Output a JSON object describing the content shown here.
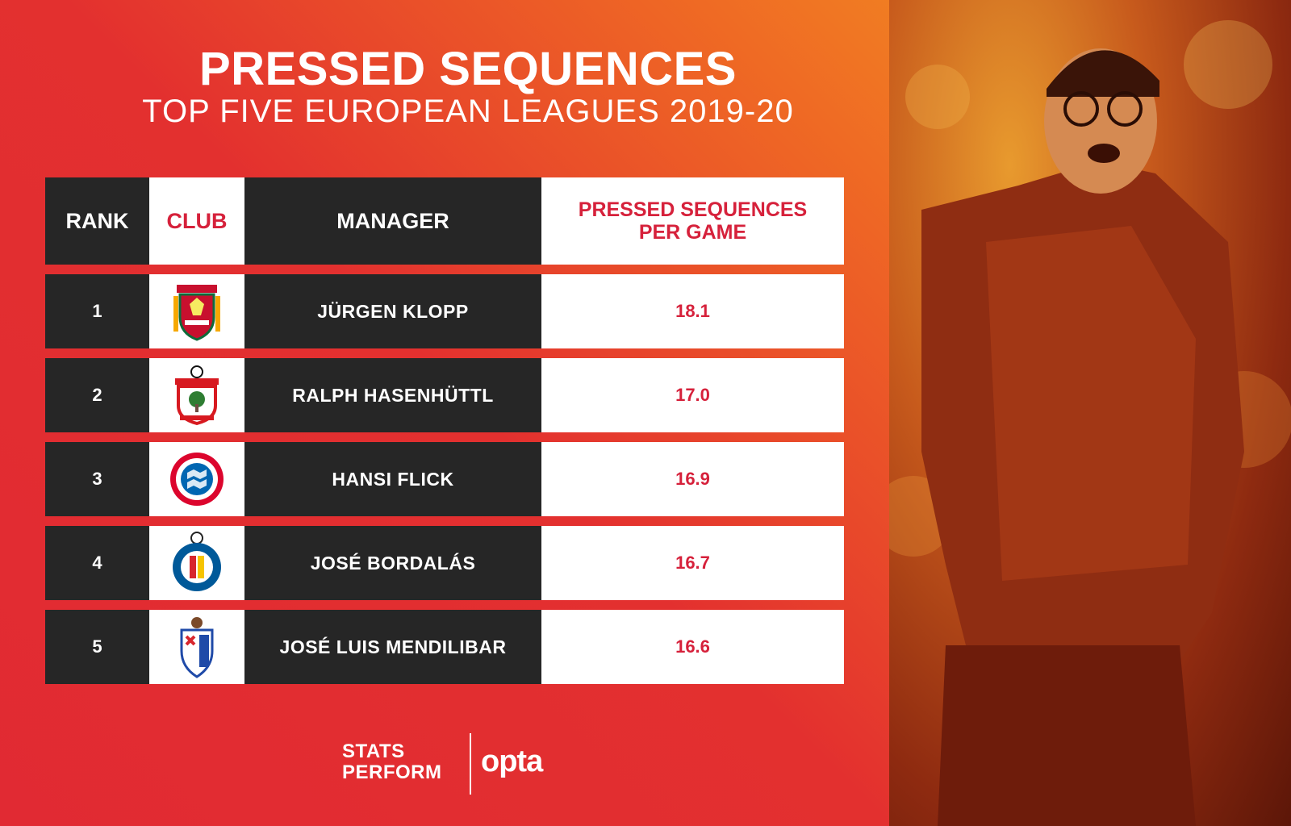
{
  "header": {
    "title": "PRESSED SEQUENCES",
    "subtitle": "TOP FIVE EUROPEAN LEAGUES 2019-20"
  },
  "table": {
    "columns": {
      "rank": "RANK",
      "club": "CLUB",
      "manager": "MANAGER",
      "value_line1": "PRESSED SEQUENCES",
      "value_line2": "PER GAME"
    },
    "rows": [
      {
        "rank": "1",
        "club": "Liverpool",
        "manager": "JÜRGEN KLOPP",
        "value": "18.1"
      },
      {
        "rank": "2",
        "club": "Southampton",
        "manager": "RALPH HASENHÜTTL",
        "value": "17.0"
      },
      {
        "rank": "3",
        "club": "Bayern München",
        "manager": "HANSI FLICK",
        "value": "16.9"
      },
      {
        "rank": "4",
        "club": "Getafe",
        "manager": "JOSÉ BORDALÁS",
        "value": "16.7"
      },
      {
        "rank": "5",
        "club": "Eibar",
        "manager": "JOSÉ LUIS MENDILIBAR",
        "value": "16.6"
      }
    ]
  },
  "chart_data": {
    "type": "table",
    "title": "PRESSED SEQUENCES",
    "subtitle": "TOP FIVE EUROPEAN LEAGUES 2019-20",
    "columns": [
      "RANK",
      "CLUB",
      "MANAGER",
      "PRESSED SEQUENCES PER GAME"
    ],
    "rows": [
      [
        1,
        "Liverpool",
        "JÜRGEN KLOPP",
        18.1
      ],
      [
        2,
        "Southampton",
        "RALPH HASENHÜTTL",
        17.0
      ],
      [
        3,
        "Bayern München",
        "HANSI FLICK",
        16.9
      ],
      [
        4,
        "Getafe",
        "JOSÉ BORDALÁS",
        16.7
      ],
      [
        5,
        "Eibar",
        "JOSÉ LUIS MENDILIBAR",
        16.6
      ]
    ]
  },
  "branding": {
    "stats_perform_line1": "STATS",
    "stats_perform_line2": "PERFORM",
    "opta": "opta"
  },
  "colors": {
    "accent_red": "#d6213b",
    "dark_cell": "#262626",
    "background_red": "#e12a33",
    "background_orange": "#f4a31f"
  }
}
